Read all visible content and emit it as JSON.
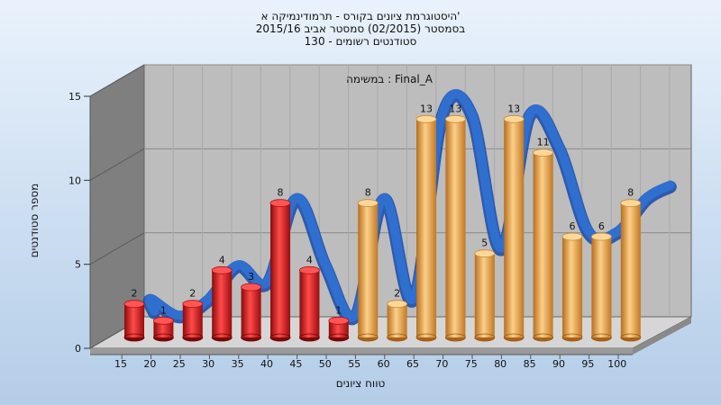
{
  "chart_data": {
    "type": "bar",
    "title_lines": [
      "היסטוגרמת ציונים בקורס - תרמודינמיקה א'",
      "בסמסטר  (02/2015)  סמסטר אביב 2015/16",
      "סטודנטים רשומים - 130"
    ],
    "subtitle": "במשימה : Final_A",
    "xlabel": "טווח ציונים",
    "ylabel": "מספר סטודנטים",
    "ylim": [
      0,
      15
    ],
    "yticks": [
      0,
      5,
      10,
      15
    ],
    "grid": true,
    "categories": [
      "15",
      "20",
      "25",
      "30",
      "35",
      "40",
      "45",
      "50",
      "55",
      "60",
      "65",
      "70",
      "75",
      "80",
      "85",
      "90",
      "95",
      "100"
    ],
    "values": [
      2,
      1,
      2,
      4,
      3,
      8,
      4,
      1,
      8,
      2,
      13,
      13,
      5,
      13,
      11,
      6,
      6,
      8
    ],
    "bar_colors": [
      "red",
      "red",
      "red",
      "red",
      "red",
      "red",
      "red",
      "red",
      "orange",
      "orange",
      "orange",
      "orange",
      "orange",
      "orange",
      "orange",
      "orange",
      "orange",
      "orange"
    ],
    "colors": {
      "fail": "#e01818",
      "pass": "#f0a93c",
      "curve": "#2f6fd0"
    }
  }
}
